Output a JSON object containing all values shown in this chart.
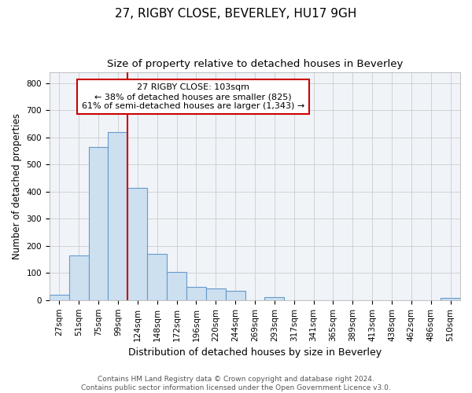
{
  "title": "27, RIGBY CLOSE, BEVERLEY, HU17 9GH",
  "subtitle": "Size of property relative to detached houses in Beverley",
  "xlabel": "Distribution of detached houses by size in Beverley",
  "ylabel": "Number of detached properties",
  "bar_labels": [
    "27sqm",
    "51sqm",
    "75sqm",
    "99sqm",
    "124sqm",
    "148sqm",
    "172sqm",
    "196sqm",
    "220sqm",
    "244sqm",
    "269sqm",
    "293sqm",
    "317sqm",
    "341sqm",
    "365sqm",
    "389sqm",
    "413sqm",
    "438sqm",
    "462sqm",
    "486sqm",
    "510sqm"
  ],
  "bar_values": [
    20,
    165,
    565,
    620,
    415,
    170,
    105,
    50,
    42,
    35,
    0,
    12,
    0,
    0,
    0,
    0,
    0,
    0,
    0,
    0,
    8
  ],
  "bar_color": "#cde0f0",
  "bar_edge_color": "#6699cc",
  "vline_x_index": 3,
  "vline_color": "#cc0000",
  "annotation_text": "27 RIGBY CLOSE: 103sqm\n← 38% of detached houses are smaller (825)\n61% of semi-detached houses are larger (1,343) →",
  "annotation_box_facecolor": "#ffffff",
  "annotation_box_edgecolor": "#cc0000",
  "ylim": [
    0,
    840
  ],
  "yticks": [
    0,
    100,
    200,
    300,
    400,
    500,
    600,
    700,
    800
  ],
  "grid_color": "#cccccc",
  "background_color": "#ffffff",
  "plot_bg_color": "#f0f4f8",
  "footer_text": "Contains HM Land Registry data © Crown copyright and database right 2024.\nContains public sector information licensed under the Open Government Licence v3.0.",
  "title_fontsize": 11,
  "subtitle_fontsize": 9.5,
  "xlabel_fontsize": 9,
  "ylabel_fontsize": 8.5,
  "tick_fontsize": 7.5,
  "annotation_fontsize": 8,
  "footer_fontsize": 6.5
}
